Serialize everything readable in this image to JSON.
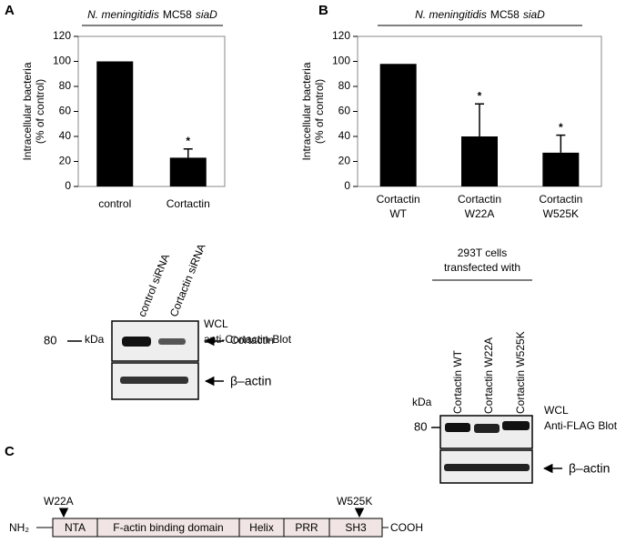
{
  "panels": [
    "A",
    "B",
    "C"
  ],
  "chart_data": [
    {
      "type": "bar",
      "title": [
        "N. meningitidis",
        "MC58",
        "siaD"
      ],
      "ylabel": [
        "Intracellular bacteria",
        "(% of control)"
      ],
      "categories": [
        [
          "control"
        ],
        [
          "Cortactin"
        ]
      ],
      "values": [
        100,
        23
      ],
      "errors": [
        null,
        7
      ],
      "markers": [
        null,
        "*"
      ],
      "color": "#000000",
      "ylim": [
        0,
        120
      ],
      "yticks": [
        0,
        20,
        40,
        60,
        80,
        100,
        120
      ]
    },
    {
      "type": "bar",
      "title": [
        "N. meningitidis",
        "MC58",
        "siaD"
      ],
      "ylabel": [
        "Intracellular bacteria",
        "(% of control)"
      ],
      "categories": [
        [
          "Cortactin",
          "WT"
        ],
        [
          "Cortactin",
          "W22A"
        ],
        [
          "Cortactin",
          "W525K"
        ]
      ],
      "values": [
        98,
        40,
        27
      ],
      "errors": [
        null,
        26,
        14
      ],
      "markers": [
        null,
        "*",
        "*"
      ],
      "color": "#000000",
      "ylim": [
        0,
        120
      ],
      "yticks": [
        0,
        20,
        40,
        60,
        80,
        100,
        120
      ]
    }
  ],
  "blot1": {
    "lanes": [
      "control siRNA",
      "Cortactin siRNA"
    ],
    "info": [
      "WCL",
      "anti-Cortactin-Blot"
    ],
    "kda": "kDa",
    "marker": "80",
    "bands": [
      "Cortactin",
      "β–actin"
    ]
  },
  "blot2": {
    "header": [
      "293T cells",
      "transfected with"
    ],
    "lanes": [
      "Cortactin WT",
      "Cortactin W22A",
      "Cortactin W525K"
    ],
    "info": [
      "WCL",
      "Anti-FLAG Blot"
    ],
    "kda": "kDa",
    "marker": "80",
    "bands": [
      "β–actin"
    ]
  },
  "diagram": {
    "nterm": "NH₂",
    "cterm": "COOH",
    "mutations": [
      "W22A",
      "W525K"
    ],
    "domains": [
      "NTA",
      "F-actin binding domain",
      "Helix",
      "PRR",
      "SH3"
    ]
  }
}
